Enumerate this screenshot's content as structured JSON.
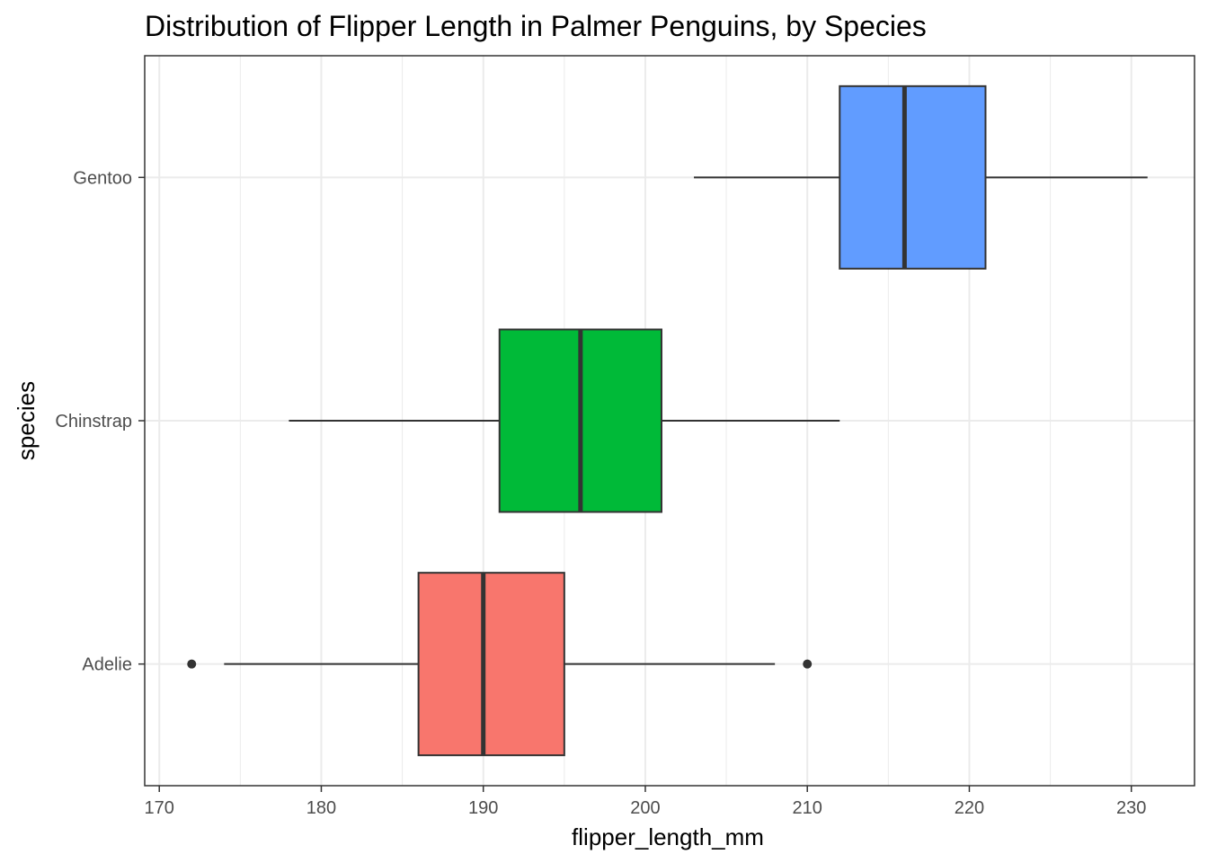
{
  "chart_data": {
    "type": "boxplot",
    "orientation": "horizontal",
    "title": "Distribution of Flipper Length in Palmer Penguins, by Species",
    "xlabel": "flipper_length_mm",
    "ylabel": "species",
    "xlim": [
      169.1,
      233.9
    ],
    "xticks": [
      170,
      180,
      190,
      200,
      210,
      220,
      230
    ],
    "categories": [
      "Adelie",
      "Chinstrap",
      "Gentoo"
    ],
    "grid": true,
    "legend": "none",
    "series": [
      {
        "category": "Adelie",
        "color": "#F8766D",
        "whisker_low": 174,
        "q1": 186,
        "median": 190,
        "q3": 195,
        "whisker_high": 208,
        "outliers": [
          172,
          210
        ]
      },
      {
        "category": "Chinstrap",
        "color": "#00BA38",
        "whisker_low": 178,
        "q1": 191,
        "median": 196,
        "q3": 201,
        "whisker_high": 212,
        "outliers": []
      },
      {
        "category": "Gentoo",
        "color": "#619CFF",
        "whisker_low": 203,
        "q1": 212,
        "median": 216,
        "q3": 221,
        "whisker_high": 231,
        "outliers": []
      }
    ]
  }
}
